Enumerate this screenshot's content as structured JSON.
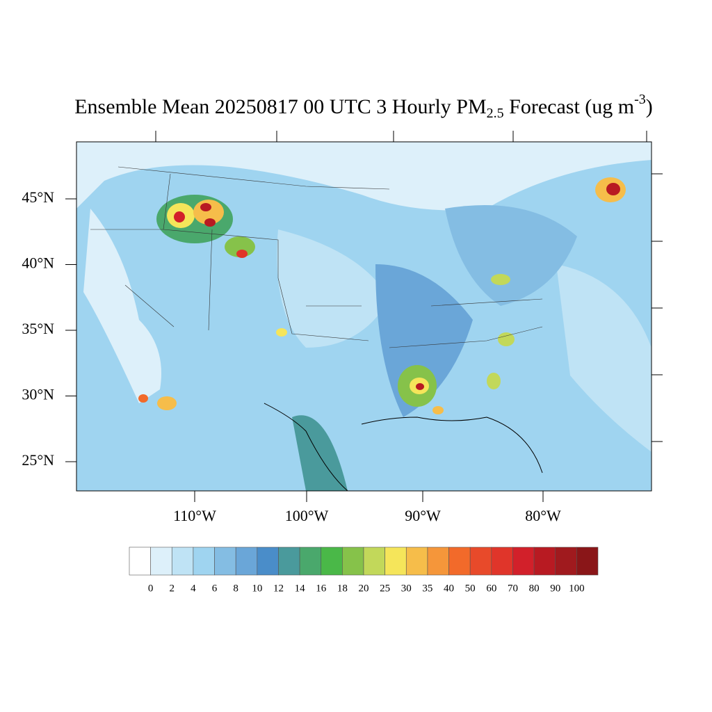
{
  "title": {
    "main": "Ensemble Mean 20250817 00 UTC 3 Hourly PM",
    "sub": "2.5",
    "after": " Forecast (ug m",
    "sup": "-3",
    "close": ")"
  },
  "lat_ticks": [
    {
      "value": 45,
      "label": "45°N"
    },
    {
      "value": 40,
      "label": "40°N"
    },
    {
      "value": 35,
      "label": "35°N"
    },
    {
      "value": 30,
      "label": "30°N"
    },
    {
      "value": 25,
      "label": "25°N"
    }
  ],
  "lon_ticks": [
    {
      "value": -110,
      "label": "110°W"
    },
    {
      "value": -100,
      "label": "100°W"
    },
    {
      "value": -90,
      "label": "90°W"
    },
    {
      "value": -80,
      "label": "80°W"
    }
  ],
  "colorbar": {
    "labels": [
      0,
      2,
      4,
      6,
      8,
      10,
      12,
      14,
      16,
      18,
      20,
      25,
      30,
      35,
      40,
      50,
      60,
      70,
      80,
      90,
      100
    ],
    "colors": [
      "#ffffff",
      "#ddf0fa",
      "#bfe3f5",
      "#9fd4f0",
      "#84bde3",
      "#6aa6d8",
      "#4a8dc9",
      "#4a9a9c",
      "#4aa86c",
      "#4ab848",
      "#86c24a",
      "#c2d85a",
      "#f5e55a",
      "#f6bd4a",
      "#f5963a",
      "#f26a2a",
      "#e84a2a",
      "#e0352a",
      "#d2202a",
      "#b81a22",
      "#a01a1e",
      "#8a1618"
    ]
  }
}
